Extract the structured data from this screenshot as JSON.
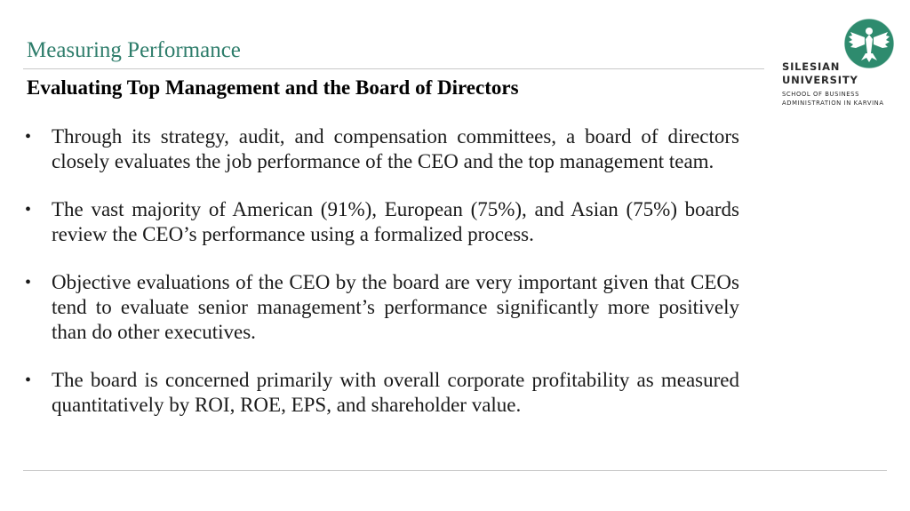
{
  "header": {
    "title": "Measuring Performance"
  },
  "slide": {
    "subtitle": "Evaluating Top Management and the Board of Directors",
    "bullets": [
      "Through its strategy, audit, and compensation committees, a board of directors closely evaluates the job performance of the CEO and the top management team.",
      "The vast majority of American (91%), European (75%), and Asian (75%) boards review the CEO’s performance using a formalized process.",
      "Objective evaluations of the CEO by the board are very important given that CEOs tend to evaluate senior management’s performance significantly more positively than do other executives.",
      "The board is concerned primarily with overall corporate profitability as measured quantitatively by ROI, ROE, EPS, and shareholder value."
    ],
    "bullet_glyph": "•"
  },
  "logo": {
    "name_line1": "SILESIAN",
    "name_line2": "UNIVERSITY",
    "sub_line1": "School of Business",
    "sub_line2": "Administration in Karvina",
    "emblem_icon": "eagle-emblem-icon",
    "emblem_color": "#2e8b6e"
  },
  "colors": {
    "header_title": "#2e7d6b",
    "rule": "#c8c8c8",
    "text": "#1a1a1a"
  }
}
